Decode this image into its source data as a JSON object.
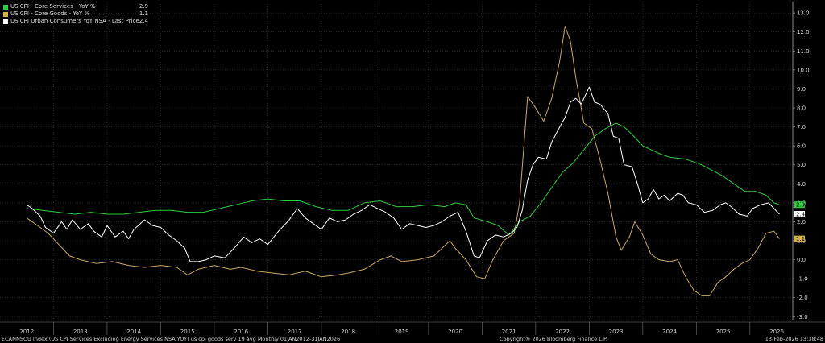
{
  "legend": [
    {
      "label": "US CPI - Core Services - YoY %",
      "value": "2.9",
      "color": "#2ecc40"
    },
    {
      "label": "US CPI - Core Goods - YoY %",
      "value": "1.1",
      "color": "#d4b04a"
    },
    {
      "label": "US CPI Urban Consumers YoY NSA - Last Price",
      "value": "2.4",
      "color": "#ffffff"
    }
  ],
  "footer": {
    "left": "ECANNSOU Index (US CPI Services Excluding Energy Services NSA YOY) us cpi goods serv 19 avg Monthly 01JAN2012-31JAN2026",
    "middle": "Copyright® 2026 Bloomberg Finance L.P.",
    "right": "13-Feb-2026 13:38:48"
  },
  "chart_data": {
    "type": "line",
    "x_labels": [
      "2012",
      "2013",
      "2014",
      "2015",
      "2016",
      "2017",
      "2018",
      "2019",
      "2020",
      "2021",
      "2022",
      "2023",
      "2024",
      "2025",
      "2026"
    ],
    "y_ticks": [
      "13.0",
      "12.0",
      "11.0",
      "10.0",
      "9.0",
      "8.0",
      "7.0",
      "6.0",
      "5.0",
      "4.0",
      "3.0",
      "2.0",
      "1.0",
      "0.0",
      "-1.0",
      "-2.0",
      "-3.0"
    ],
    "ylim": [
      -3.2,
      13.6
    ],
    "grid": true,
    "last_values": [
      "2.9",
      "2.4",
      "1.1"
    ],
    "series": [
      {
        "name": "US CPI - Core Services - YoY %",
        "color": "#2ecc40",
        "points": [
          [
            2012.0,
            2.7
          ],
          [
            2012.3,
            2.6
          ],
          [
            2012.6,
            2.5
          ],
          [
            2012.9,
            2.4
          ],
          [
            2013.2,
            2.5
          ],
          [
            2013.5,
            2.4
          ],
          [
            2013.8,
            2.4
          ],
          [
            2014.1,
            2.5
          ],
          [
            2014.4,
            2.6
          ],
          [
            2014.7,
            2.6
          ],
          [
            2015.0,
            2.5
          ],
          [
            2015.3,
            2.5
          ],
          [
            2015.6,
            2.7
          ],
          [
            2015.9,
            2.9
          ],
          [
            2016.2,
            3.1
          ],
          [
            2016.5,
            3.2
          ],
          [
            2016.8,
            3.1
          ],
          [
            2017.1,
            3.1
          ],
          [
            2017.4,
            2.8
          ],
          [
            2017.7,
            2.6
          ],
          [
            2018.0,
            2.6
          ],
          [
            2018.3,
            3.0
          ],
          [
            2018.6,
            3.1
          ],
          [
            2018.9,
            2.8
          ],
          [
            2019.2,
            2.8
          ],
          [
            2019.5,
            2.9
          ],
          [
            2019.8,
            2.8
          ],
          [
            2020.0,
            3.0
          ],
          [
            2020.2,
            2.9
          ],
          [
            2020.35,
            2.2
          ],
          [
            2020.6,
            2.0
          ],
          [
            2020.8,
            1.8
          ],
          [
            2021.0,
            1.3
          ],
          [
            2021.2,
            2.0
          ],
          [
            2021.4,
            2.3
          ],
          [
            2021.6,
            3.0
          ],
          [
            2021.8,
            3.8
          ],
          [
            2022.0,
            4.6
          ],
          [
            2022.2,
            5.1
          ],
          [
            2022.4,
            5.8
          ],
          [
            2022.6,
            6.5
          ],
          [
            2022.8,
            6.9
          ],
          [
            2023.0,
            7.2
          ],
          [
            2023.15,
            7.0
          ],
          [
            2023.3,
            6.6
          ],
          [
            2023.5,
            6.0
          ],
          [
            2023.8,
            5.6
          ],
          [
            2024.0,
            5.4
          ],
          [
            2024.3,
            5.3
          ],
          [
            2024.6,
            5.0
          ],
          [
            2024.8,
            4.7
          ],
          [
            2025.0,
            4.4
          ],
          [
            2025.2,
            4.0
          ],
          [
            2025.4,
            3.6
          ],
          [
            2025.6,
            3.6
          ],
          [
            2025.8,
            3.4
          ],
          [
            2025.95,
            3.0
          ],
          [
            2026.05,
            2.9
          ]
        ]
      },
      {
        "name": "US CPI - Core Goods - YoY %",
        "color": "#c9a865",
        "points": [
          [
            2012.0,
            2.2
          ],
          [
            2012.2,
            1.8
          ],
          [
            2012.4,
            1.4
          ],
          [
            2012.6,
            0.8
          ],
          [
            2012.8,
            0.2
          ],
          [
            2013.0,
            0.0
          ],
          [
            2013.3,
            -0.2
          ],
          [
            2013.6,
            -0.1
          ],
          [
            2013.9,
            -0.3
          ],
          [
            2014.2,
            -0.4
          ],
          [
            2014.5,
            -0.3
          ],
          [
            2014.8,
            -0.4
          ],
          [
            2015.0,
            -0.8
          ],
          [
            2015.2,
            -0.5
          ],
          [
            2015.5,
            -0.3
          ],
          [
            2015.8,
            -0.5
          ],
          [
            2016.0,
            -0.4
          ],
          [
            2016.3,
            -0.6
          ],
          [
            2016.6,
            -0.7
          ],
          [
            2016.9,
            -0.8
          ],
          [
            2017.2,
            -0.6
          ],
          [
            2017.5,
            -0.9
          ],
          [
            2017.8,
            -0.8
          ],
          [
            2018.0,
            -0.7
          ],
          [
            2018.3,
            -0.5
          ],
          [
            2018.6,
            0.0
          ],
          [
            2018.8,
            0.2
          ],
          [
            2019.0,
            -0.1
          ],
          [
            2019.3,
            0.0
          ],
          [
            2019.6,
            0.2
          ],
          [
            2019.9,
            1.0
          ],
          [
            2020.0,
            0.6
          ],
          [
            2020.2,
            0.0
          ],
          [
            2020.4,
            -0.9
          ],
          [
            2020.55,
            -1.0
          ],
          [
            2020.7,
            0.0
          ],
          [
            2020.9,
            1.0
          ],
          [
            2021.1,
            1.4
          ],
          [
            2021.2,
            3.0
          ],
          [
            2021.35,
            8.6
          ],
          [
            2021.5,
            8.0
          ],
          [
            2021.65,
            7.3
          ],
          [
            2021.8,
            8.5
          ],
          [
            2021.95,
            10.5
          ],
          [
            2022.05,
            12.3
          ],
          [
            2022.15,
            11.5
          ],
          [
            2022.25,
            9.6
          ],
          [
            2022.4,
            7.2
          ],
          [
            2022.55,
            6.9
          ],
          [
            2022.7,
            5.3
          ],
          [
            2022.85,
            3.5
          ],
          [
            2023.0,
            1.2
          ],
          [
            2023.1,
            0.5
          ],
          [
            2023.25,
            1.2
          ],
          [
            2023.35,
            2.0
          ],
          [
            2023.5,
            1.3
          ],
          [
            2023.65,
            0.3
          ],
          [
            2023.8,
            0.0
          ],
          [
            2024.0,
            -0.1
          ],
          [
            2024.15,
            0.0
          ],
          [
            2024.3,
            -0.9
          ],
          [
            2024.45,
            -1.6
          ],
          [
            2024.6,
            -1.9
          ],
          [
            2024.75,
            -1.9
          ],
          [
            2024.9,
            -1.2
          ],
          [
            2025.05,
            -0.9
          ],
          [
            2025.2,
            -0.5
          ],
          [
            2025.35,
            -0.2
          ],
          [
            2025.5,
            0.0
          ],
          [
            2025.65,
            0.6
          ],
          [
            2025.8,
            1.4
          ],
          [
            2025.95,
            1.5
          ],
          [
            2026.05,
            1.1
          ]
        ]
      },
      {
        "name": "US CPI Urban Consumers YoY NSA - Last Price",
        "color": "#ffffff",
        "points": [
          [
            2012.0,
            2.9
          ],
          [
            2012.1,
            2.7
          ],
          [
            2012.25,
            2.3
          ],
          [
            2012.35,
            1.7
          ],
          [
            2012.5,
            1.4
          ],
          [
            2012.65,
            2.0
          ],
          [
            2012.75,
            1.6
          ],
          [
            2012.85,
            2.1
          ],
          [
            2013.0,
            1.6
          ],
          [
            2013.15,
            1.9
          ],
          [
            2013.25,
            1.5
          ],
          [
            2013.4,
            1.2
          ],
          [
            2013.5,
            1.8
          ],
          [
            2013.65,
            1.2
          ],
          [
            2013.8,
            1.5
          ],
          [
            2013.9,
            1.1
          ],
          [
            2014.0,
            1.6
          ],
          [
            2014.2,
            2.1
          ],
          [
            2014.35,
            1.8
          ],
          [
            2014.5,
            1.7
          ],
          [
            2014.65,
            1.3
          ],
          [
            2014.8,
            1.0
          ],
          [
            2014.95,
            0.6
          ],
          [
            2015.05,
            -0.1
          ],
          [
            2015.2,
            -0.1
          ],
          [
            2015.35,
            0.0
          ],
          [
            2015.5,
            0.2
          ],
          [
            2015.7,
            0.1
          ],
          [
            2015.9,
            0.7
          ],
          [
            2016.05,
            1.2
          ],
          [
            2016.2,
            0.9
          ],
          [
            2016.35,
            1.1
          ],
          [
            2016.5,
            0.8
          ],
          [
            2016.7,
            1.5
          ],
          [
            2016.9,
            2.1
          ],
          [
            2017.05,
            2.7
          ],
          [
            2017.2,
            2.2
          ],
          [
            2017.35,
            1.9
          ],
          [
            2017.5,
            1.6
          ],
          [
            2017.65,
            2.2
          ],
          [
            2017.8,
            2.0
          ],
          [
            2017.95,
            2.1
          ],
          [
            2018.1,
            2.4
          ],
          [
            2018.25,
            2.6
          ],
          [
            2018.4,
            2.9
          ],
          [
            2018.55,
            2.7
          ],
          [
            2018.7,
            2.5
          ],
          [
            2018.85,
            2.2
          ],
          [
            2019.0,
            1.6
          ],
          [
            2019.15,
            1.9
          ],
          [
            2019.3,
            1.8
          ],
          [
            2019.45,
            1.7
          ],
          [
            2019.6,
            1.8
          ],
          [
            2019.75,
            2.0
          ],
          [
            2019.9,
            2.3
          ],
          [
            2020.05,
            2.5
          ],
          [
            2020.2,
            1.5
          ],
          [
            2020.35,
            0.2
          ],
          [
            2020.45,
            0.1
          ],
          [
            2020.6,
            1.0
          ],
          [
            2020.75,
            1.3
          ],
          [
            2020.9,
            1.2
          ],
          [
            2021.05,
            1.4
          ],
          [
            2021.15,
            1.7
          ],
          [
            2021.25,
            2.6
          ],
          [
            2021.35,
            4.2
          ],
          [
            2021.45,
            5.0
          ],
          [
            2021.55,
            5.4
          ],
          [
            2021.7,
            5.3
          ],
          [
            2021.8,
            6.2
          ],
          [
            2021.95,
            7.0
          ],
          [
            2022.05,
            7.5
          ],
          [
            2022.15,
            8.3
          ],
          [
            2022.25,
            8.5
          ],
          [
            2022.35,
            8.2
          ],
          [
            2022.5,
            9.1
          ],
          [
            2022.6,
            8.3
          ],
          [
            2022.7,
            8.2
          ],
          [
            2022.85,
            7.7
          ],
          [
            2022.95,
            6.5
          ],
          [
            2023.05,
            6.4
          ],
          [
            2023.15,
            5.0
          ],
          [
            2023.3,
            4.9
          ],
          [
            2023.4,
            4.0
          ],
          [
            2023.5,
            3.0
          ],
          [
            2023.6,
            3.2
          ],
          [
            2023.7,
            3.7
          ],
          [
            2023.8,
            3.2
          ],
          [
            2023.9,
            3.4
          ],
          [
            2024.0,
            3.1
          ],
          [
            2024.15,
            3.5
          ],
          [
            2024.25,
            3.4
          ],
          [
            2024.35,
            3.0
          ],
          [
            2024.5,
            2.9
          ],
          [
            2024.65,
            2.5
          ],
          [
            2024.8,
            2.6
          ],
          [
            2024.95,
            2.9
          ],
          [
            2025.05,
            3.0
          ],
          [
            2025.15,
            2.8
          ],
          [
            2025.3,
            2.4
          ],
          [
            2025.45,
            2.3
          ],
          [
            2025.55,
            2.7
          ],
          [
            2025.7,
            2.9
          ],
          [
            2025.85,
            3.0
          ],
          [
            2025.95,
            2.7
          ],
          [
            2026.05,
            2.4
          ]
        ]
      }
    ]
  }
}
